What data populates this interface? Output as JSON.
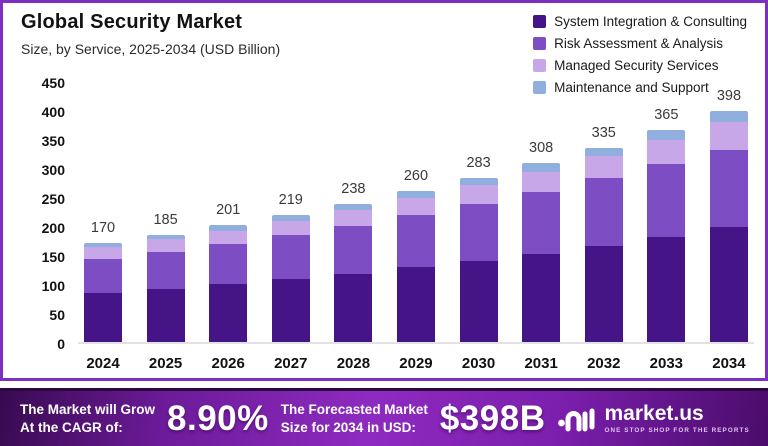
{
  "header": {
    "title": "Global Security Market",
    "subtitle": "Size, by Service, 2025-2034 (USD Billion)"
  },
  "chart_data": {
    "type": "bar",
    "stacked": true,
    "title": "Global Security Market Size, by Service, 2025-2034 (USD Billion)",
    "categories": [
      "2024",
      "2025",
      "2026",
      "2027",
      "2028",
      "2029",
      "2030",
      "2031",
      "2032",
      "2033",
      "2034"
    ],
    "series": [
      {
        "name": "System Integration & Consulting",
        "color": "#451487",
        "values": [
          84,
          92,
          100,
          108,
          118,
          129,
          140,
          152,
          166,
          181,
          198
        ]
      },
      {
        "name": "Risk Assessment & Analysis",
        "color": "#7d4ec3",
        "values": [
          59,
          64,
          69,
          76,
          82,
          90,
          98,
          106,
          116,
          126,
          133
        ]
      },
      {
        "name": "Managed Security Services",
        "color": "#c8a7e9",
        "values": [
          20,
          21,
          23,
          25,
          27,
          29,
          32,
          36,
          38,
          42,
          49
        ]
      },
      {
        "name": "Maintenance and Support",
        "color": "#90aede",
        "values": [
          7,
          8,
          9,
          10,
          11,
          12,
          13,
          14,
          15,
          16,
          18
        ]
      }
    ],
    "totals": [
      170,
      185,
      201,
      219,
      238,
      260,
      283,
      308,
      335,
      365,
      398
    ],
    "ylim": [
      0,
      450
    ],
    "ytick_step": 50,
    "grid": false,
    "legend_position": "top-right"
  },
  "banner": {
    "cagr_label_line1": "The Market will Grow",
    "cagr_label_line2": "At the CAGR of:",
    "cagr_value": "8.90%",
    "forecast_label_line1": "The Forecasted Market",
    "forecast_label_line2": "Size for 2034 in USD:",
    "forecast_value": "$398B",
    "brand_name": "market.us",
    "brand_tagline": "ONE STOP SHOP FOR THE REPORTS"
  },
  "colors": {
    "card_border": "#7d2fc0",
    "axis_line": "#e2e2e6",
    "value_label": "#3a3a3a",
    "banner_gradient_mid": "#8e2ac0"
  }
}
